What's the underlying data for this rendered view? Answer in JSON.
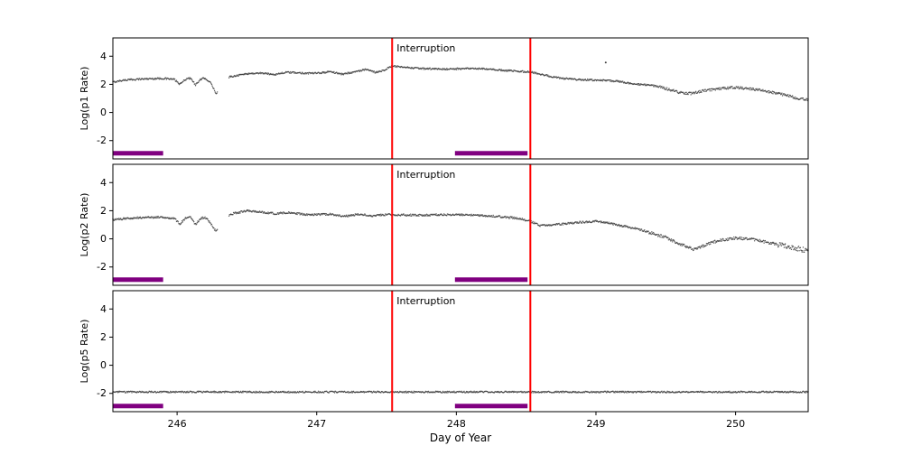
{
  "figure": {
    "background": "#ffffff",
    "xlabel": "Day of Year",
    "xlim": [
      245.54,
      250.52
    ],
    "x_ticks": [
      246,
      247,
      248,
      249,
      250
    ],
    "x_tick_labels": [
      "246",
      "247",
      "248",
      "249",
      "250"
    ],
    "interruption": {
      "label": "Interruption",
      "color": "#ff0000",
      "lines_x": [
        247.54,
        248.53
      ],
      "line_width": 2
    },
    "bars": {
      "color": "#800080",
      "y": -2.9,
      "spans": [
        [
          245.54,
          245.9
        ],
        [
          247.99,
          248.51
        ]
      ]
    }
  },
  "chart_data": [
    {
      "type": "scatter",
      "ylabel": "Log(p1 Rate)",
      "ylim": [
        -3.3,
        5.3
      ],
      "yticks": [
        -2,
        0,
        2,
        4
      ],
      "ytick_labels": [
        "-2",
        "0",
        "2",
        "4"
      ],
      "point_color": "#3c3c3c",
      "noise": 0.06,
      "noise_boost": [
        [
          249.45,
          0.09
        ]
      ],
      "gaps": [
        [
          246.29,
          246.37
        ]
      ],
      "outliers": [
        [
          249.07,
          3.55
        ]
      ],
      "anchors": [
        [
          245.54,
          2.15
        ],
        [
          245.62,
          2.3
        ],
        [
          245.75,
          2.38
        ],
        [
          245.9,
          2.42
        ],
        [
          245.98,
          2.35
        ],
        [
          246.02,
          2.0
        ],
        [
          246.06,
          2.35
        ],
        [
          246.1,
          2.45
        ],
        [
          246.13,
          1.95
        ],
        [
          246.17,
          2.35
        ],
        [
          246.2,
          2.45
        ],
        [
          246.24,
          2.1
        ],
        [
          246.28,
          1.35
        ],
        [
          246.38,
          2.55
        ],
        [
          246.5,
          2.75
        ],
        [
          246.6,
          2.8
        ],
        [
          246.7,
          2.7
        ],
        [
          246.78,
          2.85
        ],
        [
          246.9,
          2.8
        ],
        [
          247.0,
          2.78
        ],
        [
          247.1,
          2.9
        ],
        [
          247.18,
          2.72
        ],
        [
          247.28,
          2.9
        ],
        [
          247.35,
          3.05
        ],
        [
          247.42,
          2.85
        ],
        [
          247.48,
          3.0
        ],
        [
          247.54,
          3.3
        ],
        [
          247.62,
          3.2
        ],
        [
          247.75,
          3.12
        ],
        [
          247.9,
          3.08
        ],
        [
          248.0,
          3.1
        ],
        [
          248.15,
          3.12
        ],
        [
          248.3,
          3.02
        ],
        [
          248.45,
          2.92
        ],
        [
          248.53,
          2.88
        ],
        [
          248.62,
          2.68
        ],
        [
          248.75,
          2.42
        ],
        [
          248.9,
          2.32
        ],
        [
          249.0,
          2.3
        ],
        [
          249.15,
          2.22
        ],
        [
          249.3,
          2.0
        ],
        [
          249.42,
          1.9
        ],
        [
          249.5,
          1.7
        ],
        [
          249.6,
          1.42
        ],
        [
          249.68,
          1.35
        ],
        [
          249.78,
          1.55
        ],
        [
          249.9,
          1.72
        ],
        [
          250.0,
          1.78
        ],
        [
          250.1,
          1.68
        ],
        [
          250.2,
          1.55
        ],
        [
          250.35,
          1.25
        ],
        [
          250.45,
          1.0
        ],
        [
          250.52,
          0.9
        ]
      ]
    },
    {
      "type": "scatter",
      "ylabel": "Log(p2 Rate)",
      "ylim": [
        -3.3,
        5.3
      ],
      "yticks": [
        -2,
        0,
        2,
        4
      ],
      "ytick_labels": [
        "-2",
        "0",
        "2",
        "4"
      ],
      "point_color": "#3c3c3c",
      "noise": 0.07,
      "noise_boost": [
        [
          249.35,
          0.1
        ],
        [
          250.3,
          0.18
        ]
      ],
      "gaps": [
        [
          246.29,
          246.37
        ]
      ],
      "outliers": [],
      "anchors": [
        [
          245.54,
          1.35
        ],
        [
          245.7,
          1.5
        ],
        [
          245.9,
          1.55
        ],
        [
          245.98,
          1.45
        ],
        [
          246.02,
          1.05
        ],
        [
          246.06,
          1.45
        ],
        [
          246.1,
          1.55
        ],
        [
          246.13,
          1.0
        ],
        [
          246.17,
          1.45
        ],
        [
          246.2,
          1.55
        ],
        [
          246.24,
          1.1
        ],
        [
          246.28,
          0.5
        ],
        [
          246.38,
          1.75
        ],
        [
          246.5,
          2.0
        ],
        [
          246.6,
          1.9
        ],
        [
          246.7,
          1.8
        ],
        [
          246.8,
          1.85
        ],
        [
          246.95,
          1.7
        ],
        [
          247.1,
          1.75
        ],
        [
          247.2,
          1.6
        ],
        [
          247.3,
          1.75
        ],
        [
          247.4,
          1.65
        ],
        [
          247.5,
          1.72
        ],
        [
          247.6,
          1.7
        ],
        [
          247.75,
          1.68
        ],
        [
          247.9,
          1.72
        ],
        [
          248.05,
          1.72
        ],
        [
          248.2,
          1.65
        ],
        [
          248.35,
          1.55
        ],
        [
          248.45,
          1.45
        ],
        [
          248.53,
          1.25
        ],
        [
          248.6,
          0.95
        ],
        [
          248.7,
          1.0
        ],
        [
          248.85,
          1.15
        ],
        [
          249.0,
          1.25
        ],
        [
          249.1,
          1.1
        ],
        [
          249.2,
          0.9
        ],
        [
          249.3,
          0.7
        ],
        [
          249.4,
          0.4
        ],
        [
          249.5,
          0.1
        ],
        [
          249.6,
          -0.35
        ],
        [
          249.7,
          -0.75
        ],
        [
          249.78,
          -0.45
        ],
        [
          249.88,
          -0.1
        ],
        [
          250.0,
          0.05
        ],
        [
          250.1,
          0.0
        ],
        [
          250.2,
          -0.2
        ],
        [
          250.3,
          -0.4
        ],
        [
          250.4,
          -0.6
        ],
        [
          250.52,
          -0.85
        ]
      ]
    },
    {
      "type": "scatter",
      "ylabel": "Log(p5 Rate)",
      "ylim": [
        -3.3,
        5.3
      ],
      "yticks": [
        -2,
        0,
        2,
        4
      ],
      "ytick_labels": [
        "-2",
        "0",
        "2",
        "4"
      ],
      "point_color": "#3c3c3c",
      "noise": 0.055,
      "noise_boost": [],
      "gaps": [],
      "outliers": [],
      "anchors": [
        [
          245.54,
          -1.9
        ],
        [
          250.52,
          -1.9
        ]
      ]
    }
  ]
}
